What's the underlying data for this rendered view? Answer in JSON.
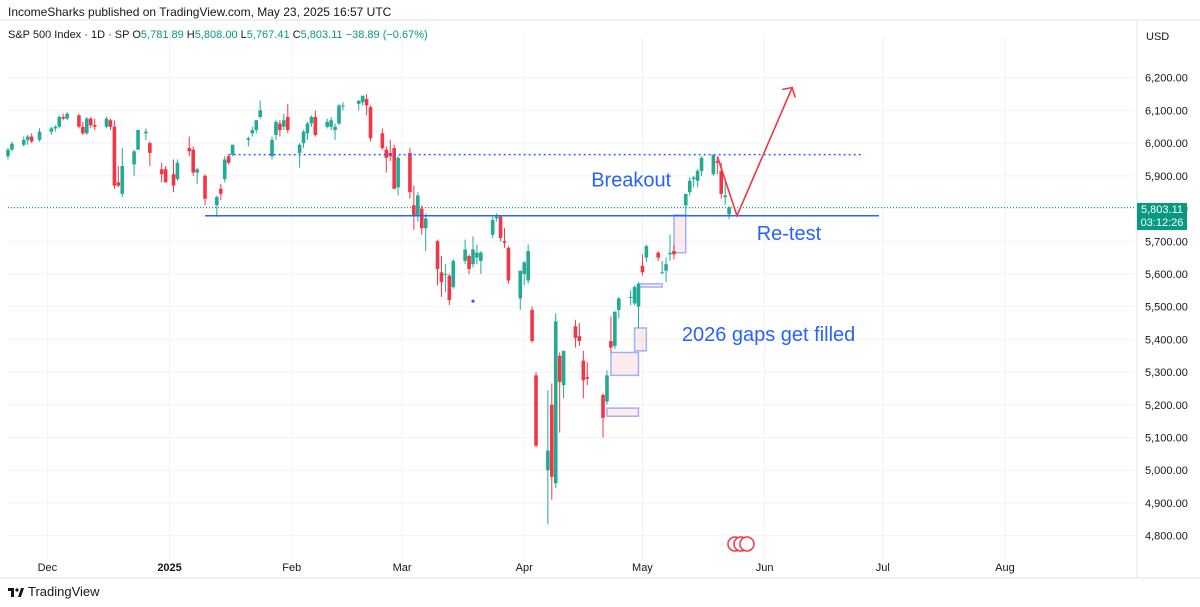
{
  "header": {
    "attribution": "IncomeSharks published on TradingView.com, May 23, 2025 16:57 UTC",
    "symbol": "S&P 500 Index · 1D · SP",
    "open_label": "O",
    "open": "5,781.89",
    "high_label": "H",
    "high": "5,808.00",
    "low_label": "L",
    "low": "5,767.41",
    "close_label": "C",
    "close": "5,803.11",
    "change": "−38.89 (−0.67%)",
    "currency": "USD"
  },
  "price_tag": {
    "price": "5,803.11",
    "countdown": "03:12:26"
  },
  "annotations": {
    "breakout": "Breakout",
    "retest": "Re-test",
    "gaps": "2026 gaps get filled"
  },
  "branding": "TradingView",
  "colors": {
    "up": "#22ab94",
    "down": "#f23645",
    "annotation_blue": "#2962ff",
    "arrow": "#f23645",
    "grid": "#f0f3fa"
  },
  "chart_data": {
    "type": "candlestick",
    "title": "S&P 500 Index · 1D · SP",
    "ylim": [
      4750,
      6300
    ],
    "y_ticks": [
      4800,
      4900,
      5000,
      5100,
      5200,
      5300,
      5400,
      5500,
      5600,
      5700,
      5800,
      5900,
      6000,
      6100,
      6200
    ],
    "y_tick_labels": [
      "4,800.00",
      "4,900.00",
      "5,000.00",
      "5,100.00",
      "5,200.00",
      "5,300.00",
      "5,400.00",
      "5,500.00",
      "5,600.00",
      "5,700.00",
      "5,800.00",
      "5,900.00",
      "6,000.00",
      "6,100.00",
      "6,200.00"
    ],
    "x_ticks": [
      {
        "date": "2024-12-01",
        "label": "Dec"
      },
      {
        "date": "2025-01-01",
        "label": "2025"
      },
      {
        "date": "2025-02-01",
        "label": "Feb"
      },
      {
        "date": "2025-03-01",
        "label": "Mar"
      },
      {
        "date": "2025-04-01",
        "label": "Apr"
      },
      {
        "date": "2025-05-01",
        "label": "May"
      },
      {
        "date": "2025-06-01",
        "label": "Jun"
      },
      {
        "date": "2025-07-01",
        "label": "Jul"
      },
      {
        "date": "2025-08-01",
        "label": "Aug"
      }
    ],
    "xlim": [
      "2024-11-21",
      "2025-09-03"
    ],
    "candles": [
      [
        "2024-11-21",
        5960,
        5985,
        5950,
        5980
      ],
      [
        "2024-11-22",
        5980,
        6005,
        5975,
        5998
      ],
      [
        "2024-11-25",
        5995,
        6020,
        5990,
        6010
      ],
      [
        "2024-11-26",
        6010,
        6025,
        5995,
        6020
      ],
      [
        "2024-11-27",
        6020,
        6030,
        6000,
        6005
      ],
      [
        "2024-11-29",
        6010,
        6045,
        6005,
        6035
      ],
      [
        "2024-12-02",
        6035,
        6050,
        6025,
        6045
      ],
      [
        "2024-12-03",
        6045,
        6055,
        6035,
        6050
      ],
      [
        "2024-12-04",
        6050,
        6085,
        6045,
        6080
      ],
      [
        "2024-12-05",
        6080,
        6090,
        6070,
        6075
      ],
      [
        "2024-12-06",
        6075,
        6095,
        6070,
        6090
      ],
      [
        "2024-12-09",
        6085,
        6090,
        6045,
        6050
      ],
      [
        "2024-12-10",
        6050,
        6065,
        6025,
        6030
      ],
      [
        "2024-12-11",
        6030,
        6080,
        6025,
        6075
      ],
      [
        "2024-12-12",
        6075,
        6080,
        6045,
        6055
      ],
      [
        "2024-12-13",
        6055,
        6075,
        6040,
        6050
      ],
      [
        "2024-12-16",
        6050,
        6080,
        6045,
        6075
      ],
      [
        "2024-12-17",
        6070,
        6075,
        6040,
        6050
      ],
      [
        "2024-12-18",
        6050,
        6070,
        5860,
        5870
      ],
      [
        "2024-12-19",
        5880,
        5930,
        5865,
        5870
      ],
      [
        "2024-12-20",
        5845,
        5985,
        5835,
        5930
      ],
      [
        "2024-12-23",
        5935,
        5980,
        5900,
        5975
      ],
      [
        "2024-12-24",
        5980,
        6040,
        5980,
        6040
      ],
      [
        "2024-12-26",
        6030,
        6045,
        6010,
        6035
      ],
      [
        "2024-12-27",
        6000,
        6005,
        5930,
        5970
      ],
      [
        "2024-12-30",
        5920,
        5940,
        5880,
        5905
      ],
      [
        "2024-12-31",
        5920,
        5930,
        5880,
        5880
      ],
      [
        "2025-01-02",
        5905,
        5950,
        5850,
        5870
      ],
      [
        "2025-01-03",
        5890,
        5950,
        5885,
        5940
      ],
      [
        "2025-01-06",
        5985,
        6020,
        5960,
        5975
      ],
      [
        "2025-01-07",
        5980,
        5990,
        5900,
        5910
      ],
      [
        "2025-01-08",
        5910,
        5925,
        5875,
        5920
      ],
      [
        "2025-01-10",
        5900,
        5905,
        5810,
        5830
      ],
      [
        "2025-01-13",
        5810,
        5840,
        5775,
        5835
      ],
      [
        "2025-01-14",
        5860,
        5875,
        5825,
        5845
      ],
      [
        "2025-01-15",
        5890,
        5960,
        5880,
        5950
      ],
      [
        "2025-01-16",
        5960,
        5965,
        5935,
        5940
      ],
      [
        "2025-01-17",
        5965,
        5995,
        5960,
        5995
      ],
      [
        "2025-01-21",
        6010,
        6020,
        5990,
        6015
      ],
      [
        "2025-01-22",
        6030,
        6050,
        6020,
        6040
      ],
      [
        "2025-01-23",
        6040,
        6070,
        6030,
        6070
      ],
      [
        "2025-01-24",
        6080,
        6130,
        6075,
        6100
      ],
      [
        "2025-01-27",
        5960,
        6020,
        5950,
        6010
      ],
      [
        "2025-01-28",
        6025,
        6070,
        6010,
        6065
      ],
      [
        "2025-01-29",
        6060,
        6070,
        6020,
        6040
      ],
      [
        "2025-01-30",
        6050,
        6090,
        6040,
        6070
      ],
      [
        "2025-01-31",
        6080,
        6120,
        6030,
        6040
      ],
      [
        "2025-02-03",
        5970,
        6000,
        5925,
        5995
      ],
      [
        "2025-02-04",
        6000,
        6040,
        5985,
        6035
      ],
      [
        "2025-02-05",
        6030,
        6065,
        6010,
        6060
      ],
      [
        "2025-02-06",
        6060,
        6085,
        6050,
        6080
      ],
      [
        "2025-02-07",
        6080,
        6100,
        6020,
        6025
      ],
      [
        "2025-02-10",
        6050,
        6075,
        6045,
        6065
      ],
      [
        "2025-02-11",
        6050,
        6080,
        6040,
        6070
      ],
      [
        "2025-02-12",
        6040,
        6060,
        6010,
        6050
      ],
      [
        "2025-02-13",
        6060,
        6120,
        6055,
        6115
      ],
      [
        "2025-02-14",
        6115,
        6125,
        6100,
        6115
      ],
      [
        "2025-02-18",
        6120,
        6130,
        6100,
        6130
      ],
      [
        "2025-02-19",
        6125,
        6145,
        6115,
        6145
      ],
      [
        "2025-02-20",
        6135,
        6150,
        6085,
        6115
      ],
      [
        "2025-02-21",
        6110,
        6115,
        6005,
        6015
      ],
      [
        "2025-02-24",
        6030,
        6045,
        5980,
        5985
      ],
      [
        "2025-02-25",
        5980,
        5990,
        5910,
        5955
      ],
      [
        "2025-02-26",
        5970,
        6010,
        5945,
        5960
      ],
      [
        "2025-02-27",
        5985,
        5995,
        5860,
        5860
      ],
      [
        "2025-02-28",
        5865,
        5960,
        5840,
        5955
      ],
      [
        "2025-03-03",
        5970,
        5985,
        5830,
        5850
      ],
      [
        "2025-03-04",
        5810,
        5870,
        5735,
        5780
      ],
      [
        "2025-03-05",
        5780,
        5850,
        5760,
        5840
      ],
      [
        "2025-03-06",
        5800,
        5810,
        5720,
        5740
      ],
      [
        "2025-03-07",
        5740,
        5785,
        5670,
        5770
      ],
      [
        "2025-03-10",
        5700,
        5705,
        5565,
        5615
      ],
      [
        "2025-03-11",
        5605,
        5655,
        5530,
        5575
      ],
      [
        "2025-03-12",
        5600,
        5630,
        5545,
        5600
      ],
      [
        "2025-03-13",
        5595,
        5600,
        5505,
        5520
      ],
      [
        "2025-03-14",
        5560,
        5645,
        5555,
        5640
      ],
      [
        "2025-03-17",
        5640,
        5705,
        5630,
        5675
      ],
      [
        "2025-03-18",
        5655,
        5660,
        5600,
        5615
      ],
      [
        "2025-03-19",
        5630,
        5715,
        5620,
        5675
      ],
      [
        "2025-03-20",
        5650,
        5690,
        5630,
        5665
      ],
      [
        "2025-03-21",
        5640,
        5670,
        5600,
        5665
      ],
      [
        "2025-03-24",
        5720,
        5775,
        5710,
        5765
      ],
      [
        "2025-03-25",
        5770,
        5785,
        5760,
        5775
      ],
      [
        "2025-03-26",
        5775,
        5780,
        5700,
        5710
      ],
      [
        "2025-03-27",
        5700,
        5740,
        5680,
        5695
      ],
      [
        "2025-03-28",
        5680,
        5685,
        5570,
        5580
      ],
      [
        "2025-03-31",
        5525,
        5610,
        5490,
        5610
      ],
      [
        "2025-04-01",
        5600,
        5640,
        5565,
        5635
      ],
      [
        "2025-04-02",
        5580,
        5690,
        5570,
        5670
      ],
      [
        "2025-04-03",
        5490,
        5500,
        5390,
        5395
      ],
      [
        "2025-04-04",
        5290,
        5300,
        5070,
        5075
      ],
      [
        "2025-04-07",
        5000,
        5245,
        4835,
        5060
      ],
      [
        "2025-04-08",
        5200,
        5265,
        4910,
        4980
      ],
      [
        "2025-04-09",
        4960,
        5480,
        4945,
        5455
      ],
      [
        "2025-04-10",
        5350,
        5360,
        5115,
        5270
      ],
      [
        "2025-04-11",
        5260,
        5365,
        5220,
        5365
      ],
      [
        "2025-04-14",
        5440,
        5460,
        5375,
        5405
      ],
      [
        "2025-04-15",
        5410,
        5450,
        5380,
        5395
      ],
      [
        "2025-04-16",
        5335,
        5365,
        5220,
        5275
      ],
      [
        "2025-04-17",
        5285,
        5330,
        5260,
        5280
      ],
      [
        "2025-04-21",
        5230,
        5235,
        5100,
        5160
      ],
      [
        "2025-04-22",
        5210,
        5305,
        5200,
        5290
      ],
      [
        "2025-04-23",
        5395,
        5470,
        5360,
        5375
      ],
      [
        "2025-04-24",
        5380,
        5485,
        5370,
        5485
      ],
      [
        "2025-04-25",
        5490,
        5530,
        5465,
        5525
      ],
      [
        "2025-04-28",
        5530,
        5550,
        5505,
        5530
      ],
      [
        "2025-04-29",
        5510,
        5565,
        5505,
        5560
      ],
      [
        "2025-04-30",
        5500,
        5575,
        5435,
        5570
      ],
      [
        "2025-05-01",
        5625,
        5660,
        5595,
        5605
      ],
      [
        "2025-05-02",
        5650,
        5690,
        5635,
        5685
      ],
      [
        "2025-05-05",
        5665,
        5670,
        5640,
        5650
      ],
      [
        "2025-05-06",
        5605,
        5640,
        5600,
        5605
      ],
      [
        "2025-05-07",
        5610,
        5650,
        5575,
        5630
      ],
      [
        "2025-05-08",
        5660,
        5720,
        5640,
        5665
      ],
      [
        "2025-05-09",
        5670,
        5690,
        5645,
        5660
      ],
      [
        "2025-05-12",
        5810,
        5845,
        5780,
        5845
      ],
      [
        "2025-05-13",
        5850,
        5895,
        5840,
        5885
      ],
      [
        "2025-05-14",
        5890,
        5900,
        5865,
        5895
      ],
      [
        "2025-05-15",
        5885,
        5920,
        5865,
        5915
      ],
      [
        "2025-05-16",
        5915,
        5960,
        5900,
        5955
      ],
      [
        "2025-05-19",
        5905,
        5965,
        5900,
        5965
      ],
      [
        "2025-05-20",
        5945,
        5955,
        5905,
        5940
      ],
      [
        "2025-05-21",
        5915,
        5940,
        5830,
        5845
      ],
      [
        "2025-05-22",
        5835,
        5880,
        5810,
        5840
      ],
      [
        "2025-05-23",
        5782,
        5808,
        5767,
        5803
      ]
    ],
    "last_price": 5803.11,
    "gap_boxes": [
      {
        "x0": "2025-04-22",
        "x1": "2025-04-30",
        "y0": 5165,
        "y1": 5190
      },
      {
        "x0": "2025-04-23",
        "x1": "2025-04-30",
        "y0": 5290,
        "y1": 5360
      },
      {
        "x0": "2025-04-29",
        "x1": "2025-05-02",
        "y0": 5365,
        "y1": 5435
      },
      {
        "x0": "2025-04-30",
        "x1": "2025-05-06",
        "y0": 5560,
        "y1": 5570
      },
      {
        "x0": "2025-05-09",
        "x1": "2025-05-12",
        "y0": 5665,
        "y1": 5780
      }
    ]
  }
}
